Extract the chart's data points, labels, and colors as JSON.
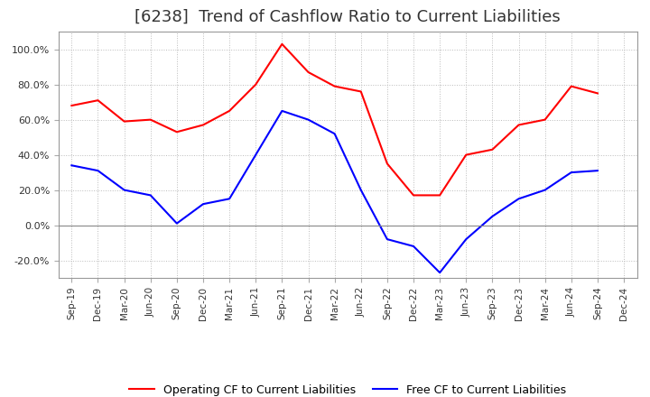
{
  "title": "[6238]  Trend of Cashflow Ratio to Current Liabilities",
  "x_labels": [
    "Sep-19",
    "Dec-19",
    "Mar-20",
    "Jun-20",
    "Sep-20",
    "Dec-20",
    "Mar-21",
    "Jun-21",
    "Sep-21",
    "Dec-21",
    "Mar-22",
    "Jun-22",
    "Sep-22",
    "Dec-22",
    "Mar-23",
    "Jun-23",
    "Sep-23",
    "Dec-23",
    "Mar-24",
    "Jun-24",
    "Sep-24",
    "Dec-24"
  ],
  "operating_cf": [
    0.68,
    0.71,
    0.59,
    0.6,
    0.53,
    0.57,
    0.65,
    0.8,
    1.03,
    0.87,
    0.79,
    0.76,
    0.35,
    0.17,
    0.17,
    0.4,
    0.43,
    0.57,
    0.6,
    0.79,
    0.75,
    null
  ],
  "free_cf": [
    0.34,
    0.31,
    0.2,
    0.17,
    0.01,
    0.12,
    0.15,
    0.4,
    0.65,
    0.6,
    0.52,
    0.2,
    -0.08,
    -0.12,
    -0.27,
    -0.08,
    0.05,
    0.15,
    0.2,
    0.3,
    0.31,
    null
  ],
  "operating_color": "#ff0000",
  "free_color": "#0000ff",
  "ylim": [
    -0.3,
    1.1
  ],
  "yticks": [
    -0.2,
    0.0,
    0.2,
    0.4,
    0.6,
    0.8,
    1.0
  ],
  "background_color": "#ffffff",
  "grid_color": "#bbbbbb",
  "title_fontsize": 13,
  "title_color": "#333333",
  "legend_labels": [
    "Operating CF to Current Liabilities",
    "Free CF to Current Liabilities"
  ]
}
